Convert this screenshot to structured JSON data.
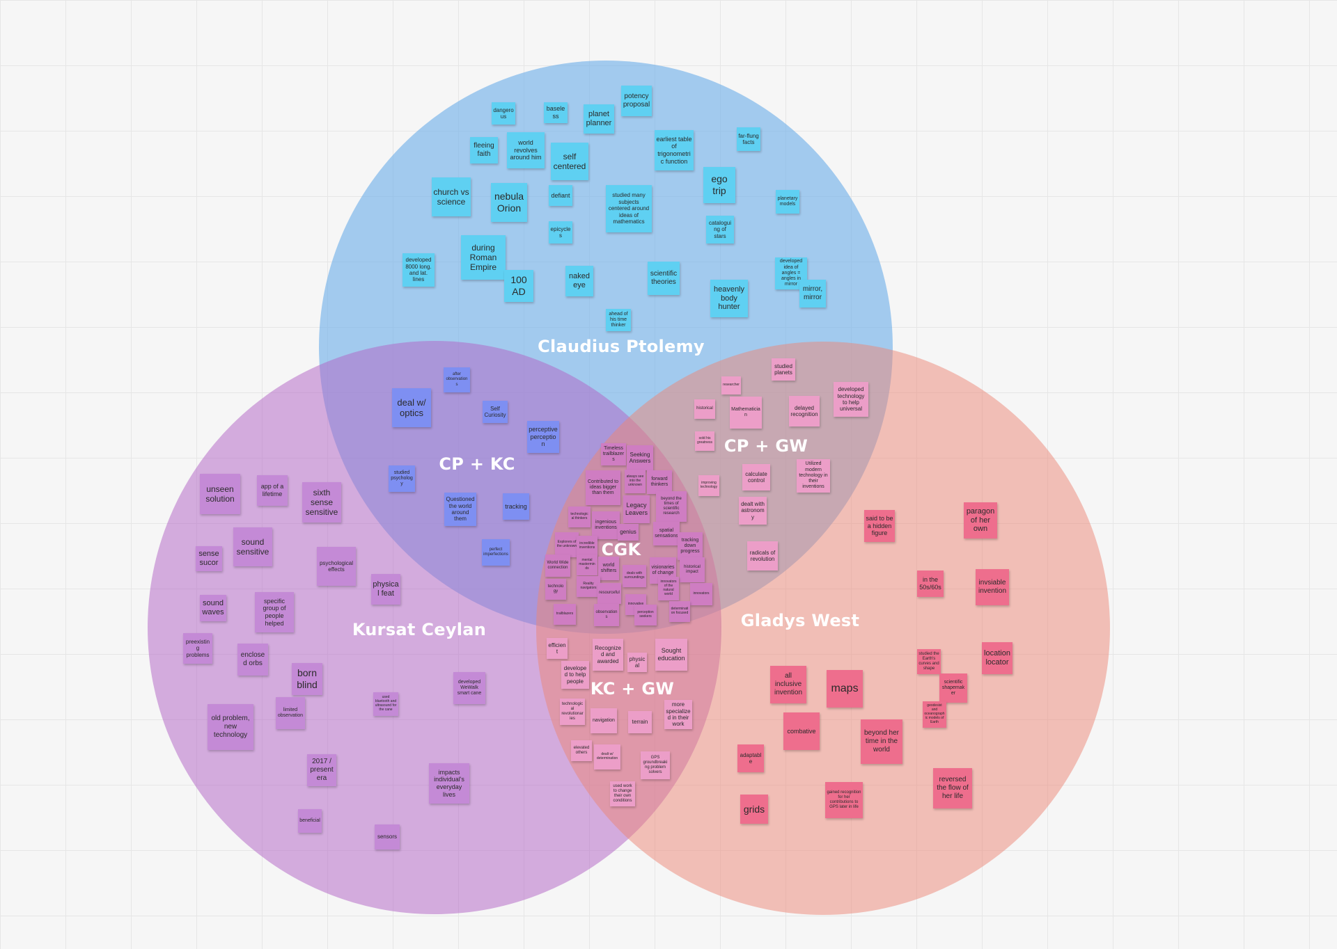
{
  "colors": {
    "background": "#f6f6f6",
    "circle_cp": "#6badea",
    "circle_kc": "#b266c5",
    "circle_gw": "#ec8576",
    "note_cyan": "#5fd0f2",
    "note_blue": "#7e8ff2",
    "note_mauve": "#c48ad6",
    "note_pink": "#ec9ec8",
    "note_red": "#ee6e8d",
    "note_magenta": "#cf7dc2"
  },
  "regions": [
    {
      "id": "cp",
      "label": "Claudius Ptolemy"
    },
    {
      "id": "kc",
      "label": "Kursat Ceylan"
    },
    {
      "id": "gw",
      "label": "Gladys West"
    },
    {
      "id": "cpkc",
      "label": "CP + KC"
    },
    {
      "id": "cpgw",
      "label": "CP + GW"
    },
    {
      "id": "kcgw",
      "label": "KC + GW"
    },
    {
      "id": "cgk",
      "label": "CGK"
    }
  ],
  "notes": {
    "cp": [
      "dangerous",
      "baseless",
      "planet planner",
      "potency proposal",
      "fleeing faith",
      "world revolves around him",
      "self centered",
      "earliest table of trigonometric function",
      "far-flung facts",
      "church vs science",
      "nebula Orion",
      "defiant",
      "studied many subjects centered around ideas of mathematics",
      "ego trip",
      "planetary models",
      "epicycles",
      "cataloguing of stars",
      "developed 8000 long. and lat. lines",
      "during Roman Empire",
      "100 AD",
      "naked eye",
      "scientific theories",
      "developed idea of angles = angles in mirror",
      "heavenly body hunter",
      "mirror, mirror",
      "ahead of his time thinker"
    ],
    "cpkc": [
      "after observations",
      "deal w/ optics",
      "Self Curiosity",
      "perceptive perception",
      "studied psychology",
      "Questioned the world around them",
      "tracking",
      "perfect imperfections"
    ],
    "cpgw": [
      "studied planets",
      "researcher",
      "Mathematician",
      "delayed recognition",
      "developed technology to help universal",
      "historical",
      "sold his greatness",
      "calculate control",
      "Utilized modern technology in their inventions",
      "improving technology",
      "dealt with astronomy",
      "radicals of revolution"
    ],
    "cgk": [
      "Timeless trailblazers",
      "Seeking Answers",
      "Contributed to ideas bigger than them",
      "always see into the unknown",
      "forward thinkers",
      "beyond the times of scientific research",
      "technological thinkers",
      "ingenious inventions",
      "Legacy Leavers",
      "genius",
      "spatial sensations",
      "tracking down progress",
      "Explorers of the unknown",
      "incredible inventions",
      "mental masterminds",
      "World Wide connection",
      "world shifters",
      "deals with surroundings",
      "visionaries of change",
      "historical impact",
      "innovators of the natural world",
      "technology",
      "Reality navigators",
      "resourceful",
      "innovators",
      "trailblazers",
      "observations",
      "innovative",
      "perception seekers",
      "determination focused"
    ],
    "kc": [
      "unseen solution",
      "app of a lifetime",
      "sixth sense sensitive",
      "sense sucor",
      "sound sensitive",
      "psychological effects",
      "physical feat",
      "sound waves",
      "specific group of people helped",
      "preexisting problems",
      "enclosed orbs",
      "born blind",
      "developed WeWalk smart cane",
      "old problem, new technology",
      "limited observation",
      "used bluetooth and ultrasound for the cane",
      "2017 / present era",
      "impacts individual's everyday lives",
      "beneficial",
      "sensors"
    ],
    "kcgw": [
      "efficient",
      "Recognized and awarded",
      "physical",
      "Sought education",
      "developed to help people",
      "technological revolutionaries",
      "navigation",
      "terrain",
      "more specialized in their work",
      "elevated others",
      "dealt w/ determination",
      "GPS groundbreaking problem solvers",
      "used work to change their own conditions"
    ],
    "gw": [
      "said to be a hidden figure",
      "paragon of her own",
      "in the 50s/60s",
      "invsiable invention",
      "studied the Earth's curves and shape",
      "location locator",
      "scientific shapemaker",
      "all inclusive invention",
      "maps",
      "geodesist and oceanographic models of Earth",
      "combative",
      "beyond her time in the world",
      "adaptable",
      "reversed the flow of her life",
      "gained recognition for her contributions to GPS later in life",
      "grids"
    ]
  }
}
